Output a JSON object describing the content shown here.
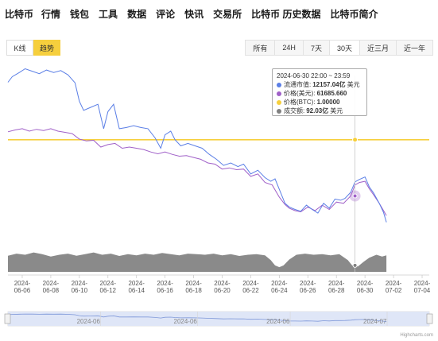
{
  "nav": {
    "items": [
      {
        "label": "比特币"
      },
      {
        "label": "行情"
      },
      {
        "label": "钱包"
      },
      {
        "label": "工具"
      },
      {
        "label": "数据"
      },
      {
        "label": "评论"
      },
      {
        "label": "快讯"
      },
      {
        "label": "交易所"
      },
      {
        "label": "比特币 历史数据"
      },
      {
        "label": "比特币简介"
      }
    ]
  },
  "mode": {
    "kline_label": "K线",
    "trend_label": "趋势",
    "active": "trend"
  },
  "ranges": [
    {
      "label": "所有"
    },
    {
      "label": "24H"
    },
    {
      "label": "7天"
    },
    {
      "label": "30天",
      "active": true
    },
    {
      "label": "近三月"
    },
    {
      "label": "近一年"
    }
  ],
  "tooltip": {
    "date": "2024-06-30 22:00 ~ 23:59",
    "rows": [
      {
        "label": "流通市值:",
        "value": "12157.04亿",
        "unit": "美元",
        "color": "#5b7fe6"
      },
      {
        "label": "价格(美元):",
        "value": "61685.660",
        "unit": "",
        "color": "#a060c8"
      },
      {
        "label": "价格(BTC):",
        "value": "1.00000",
        "unit": "",
        "color": "#f6cf3d"
      },
      {
        "label": "成交额:",
        "value": "92.03亿",
        "unit": "美元",
        "color": "#808080"
      }
    ]
  },
  "colors": {
    "market_cap": "#5b7fe6",
    "price_usd": "#a060c8",
    "price_btc": "#f6cf3d",
    "volume": "#8a8a8a",
    "navigator_fill": "#dfe6f7"
  },
  "chart_data": {
    "type": "line",
    "x_tick_labels": [
      [
        "2024-",
        "06-06"
      ],
      [
        "2024-",
        "06-08"
      ],
      [
        "2024-",
        "06-10"
      ],
      [
        "2024-",
        "06-12"
      ],
      [
        "2024-",
        "06-14"
      ],
      [
        "2024-",
        "06-16"
      ],
      [
        "2024-",
        "06-18"
      ],
      [
        "2024-",
        "06-20"
      ],
      [
        "2024-",
        "06-22"
      ],
      [
        "2024-",
        "06-24"
      ],
      [
        "2024-",
        "06-26"
      ],
      [
        "2024-",
        "06-28"
      ],
      [
        "2024-",
        "06-30"
      ],
      [
        "2024-",
        "07-02"
      ],
      [
        "2024-",
        "07-04"
      ]
    ],
    "x_range_days": [
      0,
      29.5
    ],
    "navigator_labels": [
      "2024-06",
      "2024-06",
      "2024-06",
      "2024-07"
    ],
    "series_market_cap": [
      [
        0,
        1376
      ],
      [
        0.3,
        1385
      ],
      [
        0.8,
        1392
      ],
      [
        1.2,
        1398
      ],
      [
        1.7,
        1394
      ],
      [
        2.2,
        1390
      ],
      [
        2.7,
        1396
      ],
      [
        3.2,
        1392
      ],
      [
        3.7,
        1395
      ],
      [
        4.2,
        1388
      ],
      [
        4.7,
        1375
      ],
      [
        5.0,
        1345
      ],
      [
        5.3,
        1330
      ],
      [
        5.8,
        1335
      ],
      [
        6.3,
        1340
      ],
      [
        6.7,
        1300
      ],
      [
        7.0,
        1328
      ],
      [
        7.4,
        1340
      ],
      [
        7.8,
        1300
      ],
      [
        8.3,
        1302
      ],
      [
        8.8,
        1305
      ],
      [
        9.3,
        1302
      ],
      [
        9.8,
        1300
      ],
      [
        10.3,
        1285
      ],
      [
        10.7,
        1268
      ],
      [
        11.0,
        1290
      ],
      [
        11.4,
        1296
      ],
      [
        11.7,
        1282
      ],
      [
        12.1,
        1272
      ],
      [
        12.6,
        1276
      ],
      [
        13.1,
        1272
      ],
      [
        13.6,
        1268
      ],
      [
        14.1,
        1258
      ],
      [
        14.6,
        1250
      ],
      [
        15.1,
        1240
      ],
      [
        15.6,
        1244
      ],
      [
        16.1,
        1238
      ],
      [
        16.5,
        1242
      ],
      [
        17.0,
        1226
      ],
      [
        17.5,
        1232
      ],
      [
        18.0,
        1220
      ],
      [
        18.4,
        1214
      ],
      [
        18.7,
        1218
      ],
      [
        19.1,
        1195
      ],
      [
        19.4,
        1178
      ],
      [
        19.7,
        1172
      ],
      [
        20.1,
        1168
      ],
      [
        20.5,
        1165
      ],
      [
        20.9,
        1175
      ],
      [
        21.3,
        1168
      ],
      [
        21.7,
        1162
      ],
      [
        22.1,
        1178
      ],
      [
        22.5,
        1170
      ],
      [
        22.9,
        1185
      ],
      [
        23.3,
        1183
      ],
      [
        23.6,
        1186
      ],
      [
        24.0,
        1196
      ],
      [
        24.3,
        1213
      ],
      [
        24.6,
        1217
      ],
      [
        25.0,
        1221
      ],
      [
        25.3,
        1205
      ],
      [
        25.6,
        1195
      ],
      [
        26.0,
        1178
      ],
      [
        26.3,
        1163
      ],
      [
        26.5,
        1147
      ]
    ],
    "series_price_usd": [
      [
        0,
        1295
      ],
      [
        0.5,
        1298
      ],
      [
        1.0,
        1300
      ],
      [
        1.5,
        1296
      ],
      [
        2.0,
        1299
      ],
      [
        2.5,
        1297
      ],
      [
        3.0,
        1300
      ],
      [
        3.5,
        1296
      ],
      [
        4.0,
        1294
      ],
      [
        4.5,
        1292
      ],
      [
        5.0,
        1283
      ],
      [
        5.5,
        1280
      ],
      [
        6.0,
        1281
      ],
      [
        6.5,
        1270
      ],
      [
        7.0,
        1274
      ],
      [
        7.5,
        1276
      ],
      [
        8.0,
        1268
      ],
      [
        8.5,
        1270
      ],
      [
        9.0,
        1268
      ],
      [
        9.5,
        1266
      ],
      [
        10.0,
        1262
      ],
      [
        10.5,
        1259
      ],
      [
        11.0,
        1262
      ],
      [
        11.5,
        1258
      ],
      [
        12.0,
        1255
      ],
      [
        12.5,
        1256
      ],
      [
        13.0,
        1253
      ],
      [
        13.5,
        1250
      ],
      [
        14.0,
        1244
      ],
      [
        14.5,
        1242
      ],
      [
        15.0,
        1234
      ],
      [
        15.5,
        1236
      ],
      [
        16.0,
        1233
      ],
      [
        16.5,
        1234
      ],
      [
        17.0,
        1222
      ],
      [
        17.5,
        1226
      ],
      [
        18.0,
        1212
      ],
      [
        18.5,
        1208
      ],
      [
        19.0,
        1188
      ],
      [
        19.4,
        1176
      ],
      [
        19.7,
        1170
      ],
      [
        20.1,
        1166
      ],
      [
        20.5,
        1164
      ],
      [
        21.0,
        1172
      ],
      [
        21.5,
        1166
      ],
      [
        22.0,
        1175
      ],
      [
        22.5,
        1168
      ],
      [
        23.0,
        1180
      ],
      [
        23.5,
        1178
      ],
      [
        24.0,
        1190
      ],
      [
        24.3,
        1208
      ],
      [
        24.6,
        1212
      ],
      [
        25.0,
        1214
      ],
      [
        25.3,
        1202
      ],
      [
        25.6,
        1192
      ],
      [
        26.0,
        1178
      ],
      [
        26.3,
        1166
      ],
      [
        26.5,
        1158
      ]
    ],
    "price_btc_level": 1,
    "series_volume": [
      [
        0,
        0.55
      ],
      [
        0.6,
        0.62
      ],
      [
        1.2,
        0.58
      ],
      [
        1.8,
        0.66
      ],
      [
        2.4,
        0.6
      ],
      [
        3.0,
        0.52
      ],
      [
        3.6,
        0.58
      ],
      [
        4.2,
        0.62
      ],
      [
        4.8,
        0.55
      ],
      [
        5.4,
        0.6
      ],
      [
        6.0,
        0.66
      ],
      [
        6.6,
        0.58
      ],
      [
        7.2,
        0.62
      ],
      [
        7.8,
        0.54
      ],
      [
        8.4,
        0.6
      ],
      [
        9.0,
        0.56
      ],
      [
        9.6,
        0.62
      ],
      [
        10.2,
        0.58
      ],
      [
        10.8,
        0.64
      ],
      [
        11.4,
        0.6
      ],
      [
        12.0,
        0.56
      ],
      [
        12.6,
        0.62
      ],
      [
        13.2,
        0.6
      ],
      [
        13.8,
        0.58
      ],
      [
        14.4,
        0.62
      ],
      [
        15.0,
        0.56
      ],
      [
        15.6,
        0.6
      ],
      [
        16.2,
        0.54
      ],
      [
        16.8,
        0.58
      ],
      [
        17.4,
        0.6
      ],
      [
        18.0,
        0.56
      ],
      [
        18.4,
        0.4
      ],
      [
        18.7,
        0.22
      ],
      [
        19.0,
        0.16
      ],
      [
        19.3,
        0.22
      ],
      [
        19.7,
        0.42
      ],
      [
        20.2,
        0.58
      ],
      [
        20.8,
        0.62
      ],
      [
        21.4,
        0.58
      ],
      [
        22.0,
        0.6
      ],
      [
        22.6,
        0.56
      ],
      [
        23.2,
        0.6
      ],
      [
        23.8,
        0.4
      ],
      [
        24.1,
        0.22
      ],
      [
        24.5,
        0.18
      ],
      [
        24.9,
        0.34
      ],
      [
        25.3,
        0.48
      ],
      [
        25.8,
        0.58
      ],
      [
        26.2,
        0.52
      ],
      [
        26.5,
        0.56
      ]
    ]
  },
  "credit": "Highcharts.com"
}
